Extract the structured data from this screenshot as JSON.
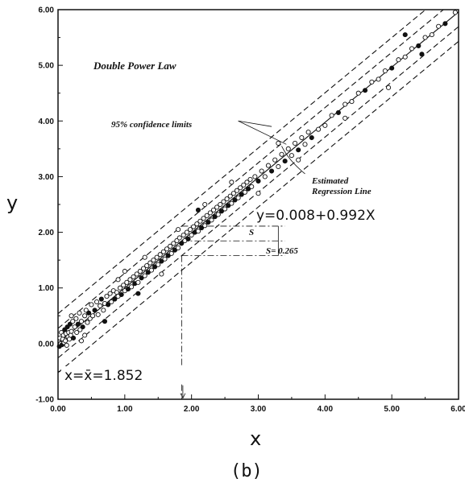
{
  "chart_data": {
    "type": "scatter",
    "title": "Double Power Law",
    "xlabel": "x",
    "ylabel": "y",
    "caption": "(b)",
    "xlim": [
      0,
      6
    ],
    "ylim": [
      -1,
      6
    ],
    "grid": false,
    "x_ticks": [
      "0.00",
      "1.00",
      "2.00",
      "3.00",
      "4.00",
      "5.00",
      "6.00"
    ],
    "y_ticks": [
      "-1.00",
      "0.00",
      "1.00",
      "2.00",
      "3.00",
      "4.00",
      "5.00",
      "6.00"
    ],
    "regression": {
      "label": "Estimated Regression Line",
      "intercept": 0.008,
      "slope": 0.992,
      "equation": "y=0.008+0.992X"
    },
    "confidence": {
      "label": "95% confidence limits",
      "half_width": 0.265
    },
    "s_label": "S",
    "s_value_label": "S= 0.265",
    "mean_x": 1.852,
    "mean_label": "x=x̄=1.852",
    "points": [
      [
        0.02,
        -0.05
      ],
      [
        0.03,
        0.1
      ],
      [
        0.04,
        0.0
      ],
      [
        0.05,
        0.2
      ],
      [
        0.06,
        -0.02
      ],
      [
        0.07,
        0.08
      ],
      [
        0.08,
        0.15
      ],
      [
        0.09,
        0.02
      ],
      [
        0.1,
        0.25
      ],
      [
        0.11,
        0.05
      ],
      [
        0.12,
        0.18
      ],
      [
        0.13,
        -0.03
      ],
      [
        0.14,
        0.3
      ],
      [
        0.15,
        0.12
      ],
      [
        0.16,
        0.2
      ],
      [
        0.17,
        0.08
      ],
      [
        0.18,
        0.35
      ],
      [
        0.19,
        0.15
      ],
      [
        0.2,
        0.22
      ],
      [
        0.22,
        0.4
      ],
      [
        0.23,
        0.1
      ],
      [
        0.25,
        0.3
      ],
      [
        0.27,
        0.45
      ],
      [
        0.28,
        0.2
      ],
      [
        0.3,
        0.35
      ],
      [
        0.32,
        0.55
      ],
      [
        0.33,
        0.25
      ],
      [
        0.35,
        0.4
      ],
      [
        0.37,
        0.3
      ],
      [
        0.4,
        0.5
      ],
      [
        0.42,
        0.6
      ],
      [
        0.44,
        0.38
      ],
      [
        0.46,
        0.55
      ],
      [
        0.48,
        0.45
      ],
      [
        0.5,
        0.7
      ],
      [
        0.52,
        0.5
      ],
      [
        0.55,
        0.6
      ],
      [
        0.58,
        0.75
      ],
      [
        0.6,
        0.52
      ],
      [
        0.63,
        0.68
      ],
      [
        0.65,
        0.8
      ],
      [
        0.68,
        0.6
      ],
      [
        0.7,
        0.72
      ],
      [
        0.73,
        0.85
      ],
      [
        0.75,
        0.7
      ],
      [
        0.78,
        0.9
      ],
      [
        0.8,
        0.75
      ],
      [
        0.83,
        0.95
      ],
      [
        0.85,
        0.8
      ],
      [
        0.88,
        0.92
      ],
      [
        0.9,
        0.85
      ],
      [
        0.93,
        1.0
      ],
      [
        0.95,
        0.88
      ],
      [
        0.98,
        1.05
      ],
      [
        1.0,
        0.95
      ],
      [
        1.03,
        1.1
      ],
      [
        1.05,
        0.98
      ],
      [
        1.08,
        1.15
      ],
      [
        1.1,
        1.02
      ],
      [
        1.13,
        1.2
      ],
      [
        1.15,
        1.08
      ],
      [
        1.18,
        1.25
      ],
      [
        1.2,
        1.1
      ],
      [
        1.23,
        1.3
      ],
      [
        1.25,
        1.18
      ],
      [
        1.28,
        1.35
      ],
      [
        1.3,
        1.22
      ],
      [
        1.33,
        1.4
      ],
      [
        1.35,
        1.28
      ],
      [
        1.38,
        1.45
      ],
      [
        1.4,
        1.32
      ],
      [
        1.43,
        1.5
      ],
      [
        1.45,
        1.38
      ],
      [
        1.48,
        1.55
      ],
      [
        1.5,
        1.42
      ],
      [
        1.53,
        1.6
      ],
      [
        1.55,
        1.48
      ],
      [
        1.58,
        1.65
      ],
      [
        1.6,
        1.52
      ],
      [
        1.63,
        1.7
      ],
      [
        1.65,
        1.58
      ],
      [
        1.68,
        1.75
      ],
      [
        1.7,
        1.62
      ],
      [
        1.73,
        1.8
      ],
      [
        1.75,
        1.68
      ],
      [
        1.78,
        1.85
      ],
      [
        1.8,
        1.72
      ],
      [
        1.82,
        1.9
      ],
      [
        1.85,
        1.8
      ],
      [
        1.88,
        1.95
      ],
      [
        1.9,
        1.85
      ],
      [
        1.93,
        2.0
      ],
      [
        1.95,
        1.88
      ],
      [
        1.98,
        2.05
      ],
      [
        2.0,
        1.95
      ],
      [
        2.03,
        2.1
      ],
      [
        2.05,
        2.0
      ],
      [
        2.08,
        2.15
      ],
      [
        2.1,
        2.02
      ],
      [
        2.13,
        2.2
      ],
      [
        2.15,
        2.08
      ],
      [
        2.18,
        2.25
      ],
      [
        2.2,
        2.12
      ],
      [
        2.23,
        2.3
      ],
      [
        2.25,
        2.18
      ],
      [
        2.28,
        2.35
      ],
      [
        2.3,
        2.22
      ],
      [
        2.33,
        2.4
      ],
      [
        2.35,
        2.28
      ],
      [
        2.38,
        2.45
      ],
      [
        2.4,
        2.32
      ],
      [
        2.43,
        2.5
      ],
      [
        2.45,
        2.38
      ],
      [
        2.48,
        2.55
      ],
      [
        2.5,
        2.42
      ],
      [
        2.53,
        2.6
      ],
      [
        2.55,
        2.48
      ],
      [
        2.58,
        2.65
      ],
      [
        2.6,
        2.52
      ],
      [
        2.63,
        2.7
      ],
      [
        2.65,
        2.58
      ],
      [
        2.68,
        2.75
      ],
      [
        2.7,
        2.62
      ],
      [
        2.73,
        2.8
      ],
      [
        2.75,
        2.68
      ],
      [
        2.78,
        2.85
      ],
      [
        2.8,
        2.72
      ],
      [
        2.83,
        2.9
      ],
      [
        2.85,
        2.78
      ],
      [
        2.88,
        2.95
      ],
      [
        2.9,
        2.82
      ],
      [
        2.95,
        3.0
      ],
      [
        3.0,
        2.92
      ],
      [
        3.05,
        3.1
      ],
      [
        3.1,
        3.0
      ],
      [
        3.15,
        3.2
      ],
      [
        3.2,
        3.1
      ],
      [
        3.25,
        3.3
      ],
      [
        3.3,
        3.18
      ],
      [
        3.35,
        3.4
      ],
      [
        3.4,
        3.28
      ],
      [
        3.45,
        3.5
      ],
      [
        3.5,
        3.38
      ],
      [
        3.55,
        3.6
      ],
      [
        3.6,
        3.48
      ],
      [
        3.65,
        3.7
      ],
      [
        3.7,
        3.58
      ],
      [
        3.75,
        3.8
      ],
      [
        3.8,
        3.7
      ],
      [
        3.9,
        3.85
      ],
      [
        4.0,
        3.92
      ],
      [
        4.1,
        4.1
      ],
      [
        4.2,
        4.15
      ],
      [
        4.3,
        4.3
      ],
      [
        4.4,
        4.35
      ],
      [
        4.5,
        4.5
      ],
      [
        4.6,
        4.55
      ],
      [
        4.7,
        4.7
      ],
      [
        4.8,
        4.75
      ],
      [
        4.9,
        4.9
      ],
      [
        5.0,
        4.95
      ],
      [
        5.1,
        5.1
      ],
      [
        5.2,
        5.15
      ],
      [
        5.3,
        5.3
      ],
      [
        5.4,
        5.35
      ],
      [
        5.5,
        5.5
      ],
      [
        5.6,
        5.55
      ],
      [
        5.7,
        5.7
      ],
      [
        5.8,
        5.75
      ],
      [
        5.95,
        5.95
      ],
      [
        1.8,
        2.05
      ],
      [
        0.4,
        0.15
      ],
      [
        1.2,
        0.9
      ],
      [
        2.6,
        2.9
      ],
      [
        3.3,
        3.6
      ],
      [
        1.0,
        1.3
      ],
      [
        0.7,
        0.4
      ],
      [
        2.2,
        2.5
      ],
      [
        4.3,
        4.05
      ],
      [
        4.95,
        4.6
      ],
      [
        5.2,
        5.55
      ],
      [
        3.0,
        2.7
      ],
      [
        0.2,
        0.5
      ],
      [
        1.55,
        1.25
      ],
      [
        2.1,
        2.4
      ],
      [
        0.35,
        0.05
      ],
      [
        0.9,
        1.15
      ],
      [
        3.6,
        3.3
      ],
      [
        5.45,
        5.2
      ],
      [
        1.3,
        1.55
      ]
    ]
  }
}
